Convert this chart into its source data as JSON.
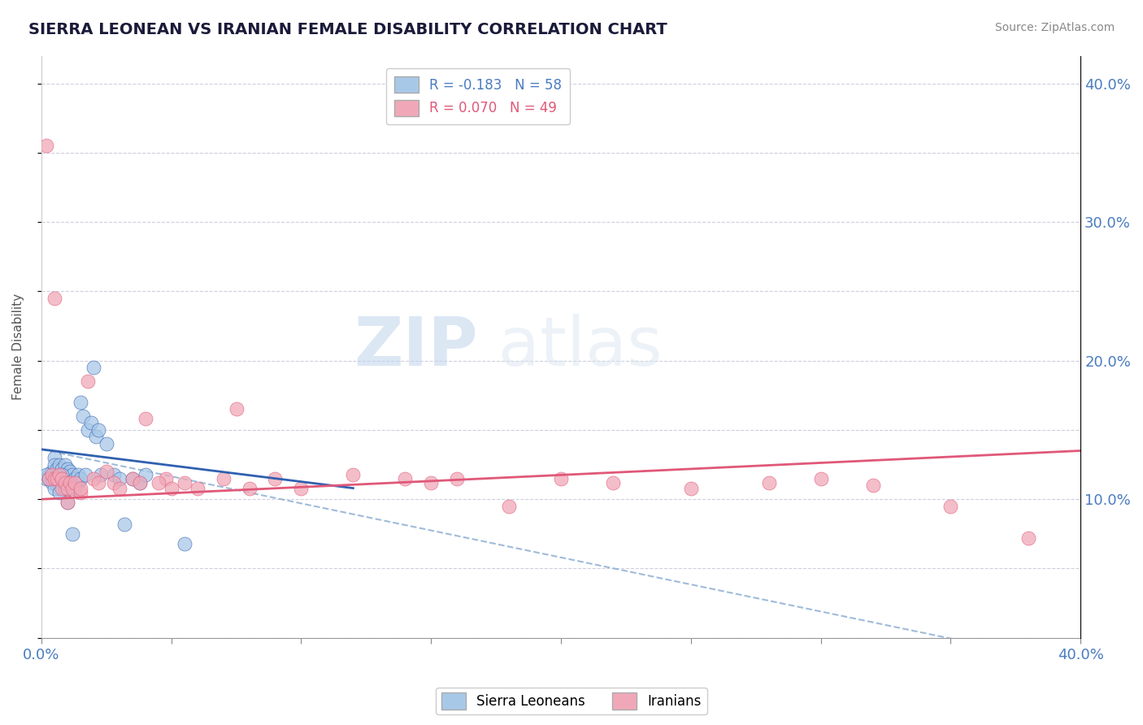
{
  "title": "SIERRA LEONEAN VS IRANIAN FEMALE DISABILITY CORRELATION CHART",
  "source": "Source: ZipAtlas.com",
  "ylabel": "Female Disability",
  "legend_blue": "R = -0.183   N = 58",
  "legend_pink": "R = 0.070   N = 49",
  "legend_label_blue": "Sierra Leoneans",
  "legend_label_pink": "Iranians",
  "blue_color": "#a8c8e8",
  "pink_color": "#f0a8b8",
  "blue_line_color": "#3060b0",
  "pink_line_color": "#e05878",
  "blue_dash_color": "#88aad0",
  "title_color": "#1a1a3a",
  "axis_label_color": "#4a7cc0",
  "source_color": "#888888",
  "xlim": [
    0.0,
    0.4
  ],
  "ylim": [
    0.0,
    0.42
  ],
  "x_ticks": [
    0.0,
    0.05,
    0.1,
    0.15,
    0.2,
    0.25,
    0.3,
    0.35,
    0.4
  ],
  "y_ticks": [
    0.0,
    0.05,
    0.1,
    0.15,
    0.2,
    0.25,
    0.3,
    0.35,
    0.4
  ],
  "blue_scatter_x": [
    0.002,
    0.003,
    0.004,
    0.004,
    0.005,
    0.005,
    0.005,
    0.006,
    0.006,
    0.006,
    0.007,
    0.007,
    0.007,
    0.008,
    0.008,
    0.008,
    0.009,
    0.009,
    0.009,
    0.01,
    0.01,
    0.01,
    0.011,
    0.011,
    0.012,
    0.012,
    0.013,
    0.013,
    0.014,
    0.014,
    0.015,
    0.015,
    0.016,
    0.017,
    0.018,
    0.019,
    0.02,
    0.021,
    0.022,
    0.023,
    0.025,
    0.028,
    0.03,
    0.032,
    0.035,
    0.038,
    0.04,
    0.002,
    0.003,
    0.004,
    0.005,
    0.006,
    0.007,
    0.008,
    0.009,
    0.01,
    0.055,
    0.012
  ],
  "blue_scatter_y": [
    0.115,
    0.118,
    0.12,
    0.112,
    0.13,
    0.125,
    0.115,
    0.118,
    0.122,
    0.11,
    0.125,
    0.115,
    0.108,
    0.118,
    0.122,
    0.112,
    0.115,
    0.118,
    0.125,
    0.118,
    0.122,
    0.112,
    0.115,
    0.12,
    0.118,
    0.112,
    0.115,
    0.108,
    0.118,
    0.112,
    0.17,
    0.115,
    0.16,
    0.118,
    0.15,
    0.155,
    0.195,
    0.145,
    0.15,
    0.118,
    0.14,
    0.118,
    0.115,
    0.082,
    0.115,
    0.112,
    0.118,
    0.118,
    0.115,
    0.115,
    0.108,
    0.115,
    0.105,
    0.118,
    0.108,
    0.098,
    0.068,
    0.075
  ],
  "pink_scatter_x": [
    0.002,
    0.003,
    0.004,
    0.005,
    0.005,
    0.006,
    0.007,
    0.008,
    0.008,
    0.009,
    0.01,
    0.01,
    0.011,
    0.012,
    0.013,
    0.015,
    0.015,
    0.018,
    0.02,
    0.022,
    0.025,
    0.028,
    0.03,
    0.035,
    0.04,
    0.048,
    0.055,
    0.06,
    0.075,
    0.08,
    0.09,
    0.1,
    0.12,
    0.14,
    0.15,
    0.16,
    0.18,
    0.2,
    0.22,
    0.25,
    0.28,
    0.3,
    0.32,
    0.35,
    0.38,
    0.038,
    0.045,
    0.05,
    0.07
  ],
  "pink_scatter_y": [
    0.355,
    0.115,
    0.118,
    0.245,
    0.115,
    0.115,
    0.118,
    0.108,
    0.115,
    0.112,
    0.108,
    0.098,
    0.112,
    0.108,
    0.112,
    0.105,
    0.108,
    0.185,
    0.115,
    0.112,
    0.12,
    0.112,
    0.108,
    0.115,
    0.158,
    0.115,
    0.112,
    0.108,
    0.165,
    0.108,
    0.115,
    0.108,
    0.118,
    0.115,
    0.112,
    0.115,
    0.095,
    0.115,
    0.112,
    0.108,
    0.112,
    0.115,
    0.11,
    0.095,
    0.072,
    0.112,
    0.112,
    0.108,
    0.115
  ]
}
